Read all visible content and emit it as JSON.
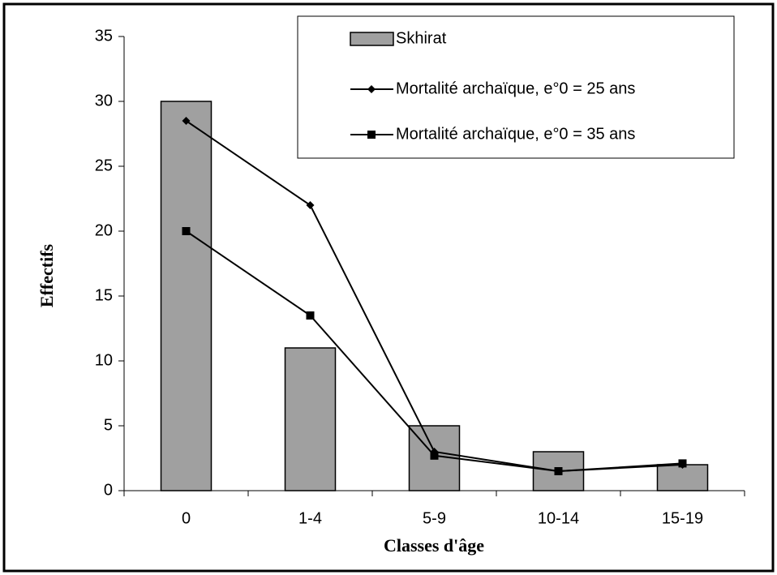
{
  "chart_data": {
    "type": "bar",
    "categories": [
      "0",
      "1-4",
      "5-9",
      "10-14",
      "15-19"
    ],
    "series": [
      {
        "name": "Skhirat",
        "type": "bar",
        "color": "#a0a0a0",
        "values": [
          30,
          11,
          5,
          3,
          2
        ]
      },
      {
        "name": "Mortalité archaïque, e°0 = 25 ans",
        "type": "line",
        "marker": "diamond",
        "color": "#000000",
        "values": [
          28.5,
          22,
          3,
          1.5,
          2
        ]
      },
      {
        "name": "Mortalité archaïque, e°0 = 35 ans",
        "type": "line",
        "marker": "square",
        "color": "#000000",
        "values": [
          20,
          13.5,
          2.7,
          1.5,
          2.1
        ]
      }
    ],
    "xlabel": "Classes d'âge",
    "ylabel": "Effectifs",
    "ylim": [
      0,
      35
    ],
    "yticks": [
      0,
      5,
      10,
      15,
      20,
      25,
      30,
      35
    ],
    "grid": false,
    "legend": "top-right"
  }
}
